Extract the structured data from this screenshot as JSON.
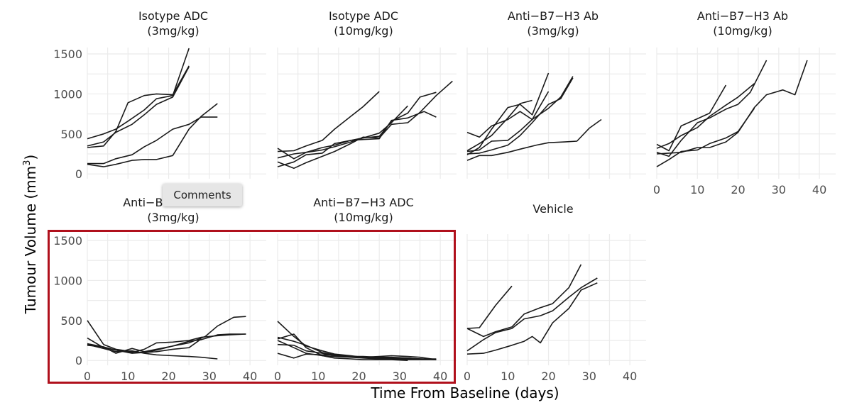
{
  "chart_data": {
    "type": "line",
    "layout": "small multiples (facet grid)",
    "xlabel": "Time From Baseline (days)",
    "ylabel_prefix": "Tumour Volume (mm",
    "ylabel_sup": "3",
    "ylabel_suffix": ")",
    "xlim": [
      0,
      44
    ],
    "ylim": [
      -60,
      1580
    ],
    "xticks": [
      0,
      10,
      20,
      30,
      40
    ],
    "yticks": [
      0,
      500,
      1000,
      1500
    ],
    "grid": true,
    "line_color": "#1a1a1a",
    "panels": [
      {
        "title_line1": "Isotype ADC",
        "title_line2": "(3mg/kg)",
        "series": [
          {
            "x": [
              0,
              4,
              7,
              10,
              14,
              17,
              21,
              25
            ],
            "y": [
              440,
              500,
              560,
              660,
              800,
              940,
              980,
              1570
            ]
          },
          {
            "x": [
              0,
              4,
              7,
              10,
              14,
              17,
              21,
              25
            ],
            "y": [
              330,
              350,
              530,
              890,
              980,
              1000,
              990,
              1350
            ]
          },
          {
            "x": [
              0,
              4,
              7,
              11,
              14,
              17,
              21,
              25
            ],
            "y": [
              350,
              400,
              520,
              620,
              740,
              870,
              960,
              1340
            ]
          },
          {
            "x": [
              0,
              4,
              7,
              11,
              14,
              17,
              21,
              25,
              28,
              32
            ],
            "y": [
              130,
              130,
              190,
              240,
              340,
              420,
              560,
              620,
              710,
              710
            ]
          },
          {
            "x": [
              0,
              4,
              7,
              11,
              14,
              17,
              21,
              25,
              28,
              32
            ],
            "y": [
              120,
              90,
              120,
              170,
              180,
              180,
              230,
              560,
              720,
              880
            ]
          }
        ]
      },
      {
        "title_line1": "Isotype ADC",
        "title_line2": "(10mg/kg)",
        "series": [
          {
            "x": [
              0,
              4,
              7,
              11,
              14,
              18,
              21,
              25
            ],
            "y": [
              280,
              290,
              350,
              420,
              560,
              720,
              840,
              1030
            ]
          },
          {
            "x": [
              0,
              4,
              7,
              11,
              14,
              18,
              21,
              25,
              28,
              32,
              35,
              39
            ],
            "y": [
              320,
              190,
              270,
              300,
              340,
              400,
              450,
              470,
              660,
              760,
              960,
              1020
            ]
          },
          {
            "x": [
              0,
              4,
              7,
              11,
              14,
              18,
              21,
              25,
              28,
              32
            ],
            "y": [
              200,
              250,
              270,
              330,
              360,
              420,
              450,
              510,
              640,
              850
            ]
          },
          {
            "x": [
              0,
              4,
              7,
              11,
              14,
              18,
              21,
              25,
              28,
              32,
              36,
              39
            ],
            "y": [
              90,
              150,
              240,
              260,
              380,
              420,
              430,
              440,
              670,
              700,
              780,
              710
            ]
          },
          {
            "x": [
              0,
              4,
              7,
              11,
              14,
              18,
              21,
              25,
              28,
              32,
              35,
              39,
              43
            ],
            "y": [
              150,
              70,
              140,
              220,
              280,
              380,
              460,
              450,
              620,
              640,
              770,
              980,
              1160
            ]
          }
        ]
      },
      {
        "title_line1": "Anti−B7−H3 Ab",
        "title_line2": "(3mg/kg)",
        "series": [
          {
            "x": [
              0,
              3,
              6,
              10,
              13,
              16,
              20
            ],
            "y": [
              240,
              330,
              560,
              830,
              870,
              740,
              1260
            ]
          },
          {
            "x": [
              0,
              3,
              6,
              10,
              13,
              16
            ],
            "y": [
              290,
              380,
              480,
              700,
              880,
              920
            ]
          },
          {
            "x": [
              0,
              3,
              6,
              10,
              13,
              16,
              20
            ],
            "y": [
              520,
              460,
              600,
              680,
              780,
              680,
              1030
            ]
          },
          {
            "x": [
              0,
              3,
              6,
              10,
              13,
              16,
              20,
              23,
              26
            ],
            "y": [
              280,
              300,
              410,
              420,
              540,
              680,
              820,
              960,
              1220
            ]
          },
          {
            "x": [
              0,
              3,
              6,
              10,
              13,
              16,
              20,
              23,
              26
            ],
            "y": [
              250,
              260,
              300,
              360,
              480,
              640,
              870,
              940,
              1200
            ]
          },
          {
            "x": [
              0,
              3,
              6,
              10,
              13,
              17,
              20,
              24,
              27,
              30,
              33
            ],
            "y": [
              170,
              230,
              230,
              270,
              310,
              360,
              390,
              400,
              410,
              570,
              680
            ]
          }
        ]
      },
      {
        "title_line1": "Anti−B7−H3 Ab",
        "title_line2": "(10mg/kg)",
        "series": [
          {
            "x": [
              0,
              3,
              6,
              10,
              13,
              17
            ],
            "y": [
              370,
              290,
              600,
              690,
              760,
              1110
            ]
          },
          {
            "x": [
              0,
              3,
              6,
              10,
              13,
              17,
              20,
              24
            ],
            "y": [
              320,
              380,
              480,
              580,
              720,
              860,
              960,
              1130
            ]
          },
          {
            "x": [
              0,
              3,
              6,
              10,
              13,
              17,
              20,
              23,
              27
            ],
            "y": [
              270,
              220,
              420,
              640,
              700,
              810,
              870,
              1020,
              1420
            ]
          },
          {
            "x": [
              0,
              3,
              6,
              10,
              13,
              17,
              20,
              24,
              27,
              31,
              34,
              37
            ],
            "y": [
              250,
              260,
              270,
              330,
              330,
              400,
              520,
              830,
              990,
              1050,
              990,
              1420
            ]
          },
          {
            "x": [
              0,
              3,
              6,
              10,
              13,
              17,
              20,
              24
            ],
            "y": [
              90,
              180,
              280,
              300,
              380,
              450,
              530,
              820
            ]
          }
        ]
      },
      {
        "title_line1": "Anti−B7−H3 ADC",
        "title_line2": "(3mg/kg)",
        "series": [
          {
            "x": [
              0,
              4,
              7,
              11,
              14,
              17,
              21,
              25,
              29,
              32,
              36,
              39
            ],
            "y": [
              500,
              200,
              140,
              110,
              100,
              130,
              180,
              220,
              300,
              430,
              540,
              550
            ]
          },
          {
            "x": [
              0,
              4,
              7,
              11,
              14,
              17,
              21,
              25,
              28,
              32,
              35,
              39
            ],
            "y": [
              280,
              160,
              130,
              100,
              140,
              220,
              230,
              250,
              290,
              310,
              320,
              330
            ]
          },
          {
            "x": [
              0,
              4,
              7,
              11,
              14,
              17,
              21,
              25,
              28,
              32,
              35,
              39
            ],
            "y": [
              210,
              170,
              90,
              150,
              110,
              140,
              180,
              240,
              260,
              320,
              330,
              330
            ]
          },
          {
            "x": [
              0,
              4,
              7,
              11,
              14,
              17,
              21,
              25,
              28,
              32
            ],
            "y": [
              200,
              150,
              110,
              120,
              90,
              70,
              60,
              50,
              40,
              20
            ]
          },
          {
            "x": [
              0,
              4,
              7,
              11,
              14,
              17,
              21,
              25,
              28
            ],
            "y": [
              190,
              170,
              130,
              90,
              100,
              110,
              140,
              160,
              270
            ]
          }
        ]
      },
      {
        "title_line1": "Anti−B7−H3 ADC",
        "title_line2": "(10mg/kg)",
        "series": [
          {
            "x": [
              0,
              4,
              7,
              11,
              14,
              18,
              21,
              25,
              28,
              32,
              35,
              39
            ],
            "y": [
              490,
              300,
              180,
              120,
              80,
              60,
              40,
              30,
              30,
              20,
              20,
              10
            ]
          },
          {
            "x": [
              0,
              4,
              7,
              11,
              14,
              18,
              21,
              25,
              28,
              32,
              35,
              39
            ],
            "y": [
              290,
              240,
              190,
              100,
              70,
              50,
              40,
              40,
              30,
              30,
              20,
              20
            ]
          },
          {
            "x": [
              0,
              4,
              7,
              11,
              14,
              18,
              21,
              25,
              28,
              32,
              35,
              39
            ],
            "y": [
              250,
              160,
              90,
              60,
              50,
              40,
              30,
              20,
              20,
              10,
              10,
              10
            ]
          },
          {
            "x": [
              0,
              4,
              7,
              11,
              14,
              18,
              21,
              25,
              28,
              32
            ],
            "y": [
              270,
              330,
              160,
              60,
              30,
              20,
              10,
              10,
              10,
              0
            ]
          },
          {
            "x": [
              0,
              4,
              7,
              11,
              14,
              18,
              21,
              25,
              28,
              32,
              35,
              39
            ],
            "y": [
              90,
              30,
              80,
              70,
              70,
              50,
              40,
              50,
              60,
              50,
              40,
              10
            ]
          },
          {
            "x": [
              0,
              4,
              7,
              11,
              14,
              18,
              21,
              25,
              28,
              32,
              35,
              39
            ],
            "y": [
              200,
              190,
              120,
              90,
              60,
              50,
              50,
              40,
              40,
              30,
              20,
              10
            ]
          }
        ]
      },
      {
        "title_line1": "Vehicle",
        "title_line2": "",
        "series": [
          {
            "x": [
              0,
              3,
              7,
              11
            ],
            "y": [
              400,
              410,
              690,
              930
            ]
          },
          {
            "x": [
              0,
              4,
              7,
              11,
              14,
              18,
              21,
              25,
              28
            ],
            "y": [
              400,
              300,
              360,
              420,
              580,
              660,
              710,
              910,
              1200
            ]
          },
          {
            "x": [
              0,
              4,
              7,
              11,
              14,
              18,
              21,
              25,
              28,
              32
            ],
            "y": [
              120,
              260,
              350,
              400,
              520,
              560,
              620,
              790,
              910,
              1030
            ]
          },
          {
            "x": [
              0,
              4,
              7,
              11,
              14,
              16,
              18,
              21,
              25,
              28,
              32
            ],
            "y": [
              80,
              90,
              130,
              190,
              240,
              300,
              220,
              470,
              650,
              880,
              970
            ]
          }
        ]
      }
    ]
  },
  "tooltip": {
    "label": "Comments"
  },
  "highlight": {
    "color": "#b0101c"
  }
}
